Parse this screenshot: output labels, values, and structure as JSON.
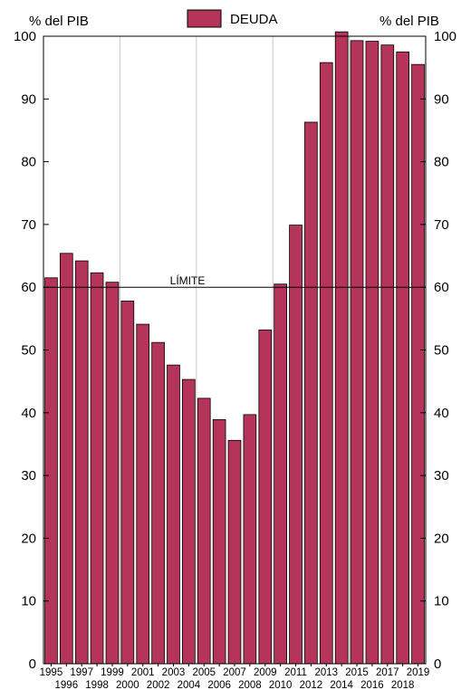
{
  "chart_data": {
    "type": "bar",
    "left_axis_unit": "% del PIB",
    "right_axis_unit": "% del PIB",
    "legend": [
      {
        "name": "DEUDA",
        "color": "#B5345A"
      }
    ],
    "ylim": [
      0,
      100
    ],
    "yticks": [
      0,
      10,
      20,
      30,
      40,
      50,
      60,
      70,
      80,
      90,
      100
    ],
    "grid": "vertical",
    "legend_position": "top-center",
    "bar_color": "#B5345A",
    "categories": [
      "1995",
      "1996",
      "1997",
      "1998",
      "1999",
      "2000",
      "2001",
      "2002",
      "2003",
      "2004",
      "2005",
      "2006",
      "2007",
      "2008",
      "2009",
      "2010",
      "2011",
      "2012",
      "2013",
      "2014",
      "2015",
      "2016",
      "2017",
      "2018",
      "2019"
    ],
    "series": [
      {
        "name": "DEUDA",
        "values": [
          61.5,
          65.4,
          64.2,
          62.3,
          60.8,
          57.8,
          54.1,
          51.2,
          47.6,
          45.3,
          42.3,
          38.9,
          35.6,
          39.7,
          53.2,
          60.5,
          69.9,
          86.3,
          95.8,
          100.7,
          99.3,
          99.2,
          98.6,
          97.5,
          95.5
        ]
      }
    ],
    "reference_line": {
      "value": 60,
      "label": "LÍMITE"
    }
  }
}
